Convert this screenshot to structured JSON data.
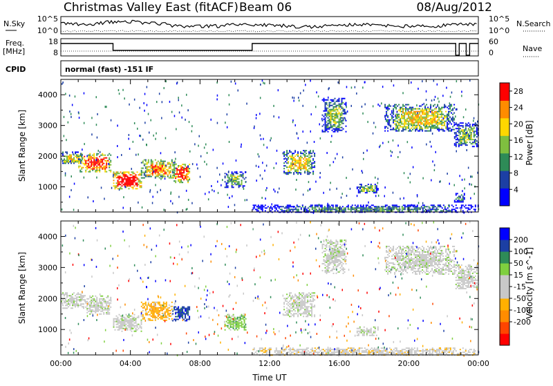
{
  "header": {
    "title": "Christmas Valley East (fitACF)",
    "beam": "Beam 06",
    "date": "08/Aug/2012",
    "mode": "normal (fast) -151 IF"
  },
  "labels": {
    "nsky": "N.Sky",
    "nsearch": "N.Search",
    "freq_top": "Freq.",
    "freq_unit": "[MHz]",
    "nave": "Nave",
    "cpid": "CPID",
    "noise_ticks_left": [
      "10^5",
      "10^0"
    ],
    "noise_ticks_right": [
      "10^5",
      "10^0"
    ],
    "freq_ticks_left": [
      "18",
      "8"
    ],
    "freq_ticks_right": [
      "60",
      "0"
    ]
  },
  "chart_data": [
    {
      "type": "heatmap",
      "title": "",
      "xlabel": "Time UT",
      "ylabel": "Slant Range [km]",
      "xticks": [
        "00:00",
        "04:00",
        "08:00",
        "12:00",
        "16:00",
        "20:00",
        "00:00"
      ],
      "yticks": [
        1000,
        2000,
        3000,
        4000
      ],
      "ylim": [
        180,
        4500
      ],
      "colorbar": {
        "label": "Power [dB]",
        "ticks": [
          4,
          8,
          12,
          16,
          20,
          24,
          28
        ],
        "range": [
          0,
          30
        ],
        "colors": [
          "#0000ff",
          "#1c3fa4",
          "#2e8b57",
          "#7fbf3f",
          "#ffd700",
          "#ff8c00",
          "#ff0000"
        ]
      },
      "echo_regions": [
        {
          "t0": 0.0,
          "t1": 1.2,
          "r0": 1750,
          "r1": 2150,
          "level": 3
        },
        {
          "t0": 1.0,
          "t1": 2.9,
          "r0": 1500,
          "r1": 2100,
          "level": 5
        },
        {
          "t0": 3.0,
          "t1": 4.6,
          "r0": 950,
          "r1": 1500,
          "level": 6
        },
        {
          "t0": 4.6,
          "t1": 6.6,
          "r0": 1300,
          "r1": 1900,
          "level": 4
        },
        {
          "t0": 6.4,
          "t1": 7.4,
          "r0": 1150,
          "r1": 1750,
          "level": 5
        },
        {
          "t0": 9.4,
          "t1": 10.6,
          "r0": 1000,
          "r1": 1500,
          "level": 2
        },
        {
          "t0": 12.8,
          "t1": 14.6,
          "r0": 1400,
          "r1": 2200,
          "level": 3
        },
        {
          "t0": 15.0,
          "t1": 16.4,
          "r0": 2800,
          "r1": 3900,
          "level": 2
        },
        {
          "t0": 17.0,
          "t1": 18.2,
          "r0": 800,
          "r1": 1100,
          "level": 2
        },
        {
          "t0": 18.6,
          "t1": 22.6,
          "r0": 2800,
          "r1": 3700,
          "level": 3
        },
        {
          "t0": 22.6,
          "t1": 24.0,
          "r0": 2300,
          "r1": 3100,
          "level": 2
        },
        {
          "t0": 22.6,
          "t1": 23.2,
          "r0": 500,
          "r1": 800,
          "level": 1
        },
        {
          "t0": 11.0,
          "t1": 24.0,
          "r0": 180,
          "r1": 420,
          "level": 1
        }
      ]
    },
    {
      "type": "heatmap",
      "title": "",
      "xlabel": "Time UT",
      "ylabel": "Slant Range [km]",
      "xticks": [
        "00:00",
        "04:00",
        "08:00",
        "12:00",
        "16:00",
        "20:00",
        "00:00"
      ],
      "yticks": [
        1000,
        2000,
        3000,
        4000
      ],
      "ylim": [
        180,
        4500
      ],
      "colorbar": {
        "label": "Velocity [m s^-1]",
        "ticks": [
          200,
          100,
          50,
          15,
          -15,
          -50,
          -100,
          -200
        ],
        "range": [
          -250,
          250
        ],
        "colors": [
          "#ff0000",
          "#ff4500",
          "#ff8c00",
          "#ffb000",
          "#c8c8c8",
          "#c8c8c8",
          "#7fcf3f",
          "#2e8b57",
          "#1c3fa4",
          "#0000ff"
        ]
      },
      "echo_regions": [
        {
          "t0": 0.0,
          "t1": 1.4,
          "r0": 1700,
          "r1": 2200,
          "vel": 0
        },
        {
          "t0": 1.4,
          "t1": 2.9,
          "r0": 1500,
          "r1": 2100,
          "vel": 20
        },
        {
          "t0": 3.0,
          "t1": 4.6,
          "r0": 950,
          "r1": 1500,
          "vel": 0
        },
        {
          "t0": 4.6,
          "t1": 6.4,
          "r0": 1300,
          "r1": 1900,
          "vel": -60
        },
        {
          "t0": 6.4,
          "t1": 7.4,
          "r0": 1300,
          "r1": 1750,
          "vel": 220
        },
        {
          "t0": 9.4,
          "t1": 10.6,
          "r0": 1000,
          "r1": 1500,
          "vel": 60
        },
        {
          "t0": 12.8,
          "t1": 14.6,
          "r0": 1400,
          "r1": 2200,
          "vel": 40
        },
        {
          "t0": 15.0,
          "t1": 16.4,
          "r0": 2800,
          "r1": 3900,
          "vel": 0
        },
        {
          "t0": 17.0,
          "t1": 18.2,
          "r0": 800,
          "r1": 1100,
          "vel": 0
        },
        {
          "t0": 18.6,
          "t1": 22.6,
          "r0": 2800,
          "r1": 3700,
          "vel": 0
        },
        {
          "t0": 22.6,
          "t1": 24.0,
          "r0": 2300,
          "r1": 3100,
          "vel": 0
        },
        {
          "t0": 11.0,
          "t1": 24.0,
          "r0": 180,
          "r1": 420,
          "vel": -30
        }
      ]
    }
  ]
}
